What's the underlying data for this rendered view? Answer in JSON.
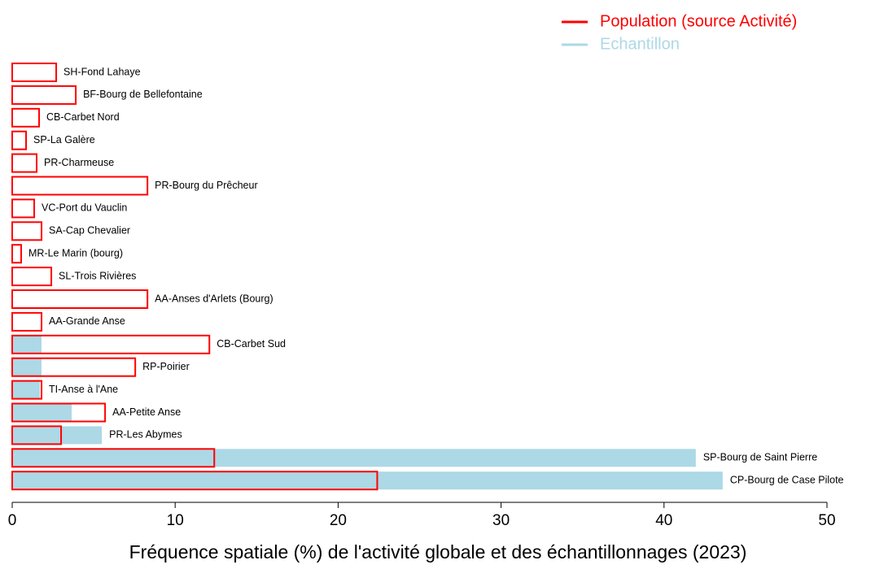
{
  "chart_data": {
    "type": "bar",
    "orientation": "horizontal",
    "xlabel": "Fréquence spatiale (%) de l'activité globale et des échantillonnages (2023)",
    "categories": [
      "SH-Fond Lahaye",
      "BF-Bourg de Bellefontaine",
      "CB-Carbet Nord",
      "SP-La Galère",
      "PR-Charmeuse",
      "PR-Bourg du Prêcheur",
      "VC-Port du Vauclin",
      "SA-Cap Chevalier",
      "MR-Le Marin (bourg)",
      "SL-Trois Rivières",
      "AA-Anses d'Arlets (Bourg)",
      "AA-Grande Anse",
      "CB-Carbet Sud",
      "RP-Poirier",
      "TI-Anse à l'Ane",
      "AA-Petite Anse",
      "PR-Les Abymes",
      "SP-Bourg de Saint Pierre",
      "CP-Bourg de Case Pilote"
    ],
    "series": [
      {
        "name": "Population (source Activité)",
        "color": "#ff0000",
        "style": "outline",
        "values": [
          2.7,
          3.9,
          1.65,
          0.85,
          1.5,
          8.3,
          1.35,
          1.8,
          0.55,
          2.4,
          8.3,
          1.8,
          12.1,
          7.55,
          1.8,
          5.7,
          3.0,
          12.4,
          22.4
        ]
      },
      {
        "name": "Echantillon",
        "color": "#add8e6",
        "style": "fill",
        "values": [
          0,
          0,
          0,
          0,
          0,
          0,
          0,
          0,
          0,
          0,
          0,
          0,
          1.8,
          1.8,
          1.7,
          3.65,
          5.5,
          41.95,
          43.6
        ]
      }
    ],
    "xlim": [
      0,
      50
    ],
    "xticks": [
      0,
      10,
      20,
      30,
      40,
      50
    ],
    "legend": "top-right"
  }
}
